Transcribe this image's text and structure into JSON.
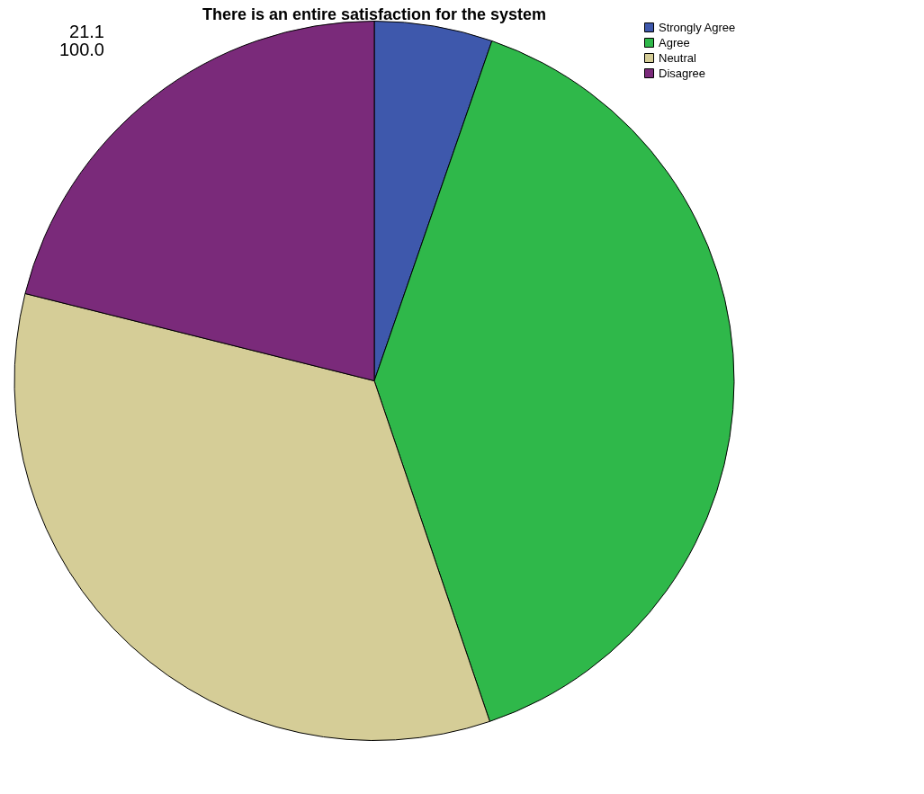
{
  "chart_data": {
    "type": "pie",
    "title": "There is an entire satisfaction for the  system",
    "categories": [
      "Strongly Agree",
      "Agree",
      "Neutral",
      "Disagree"
    ],
    "values": [
      5.3,
      39.5,
      34.1,
      21.1
    ],
    "colors": [
      "#3e58ac",
      "#2fb84a",
      "#d5cd97",
      "#7a2a7a"
    ],
    "legend": "top right",
    "annotations": [
      "21.1",
      "100.0"
    ]
  }
}
